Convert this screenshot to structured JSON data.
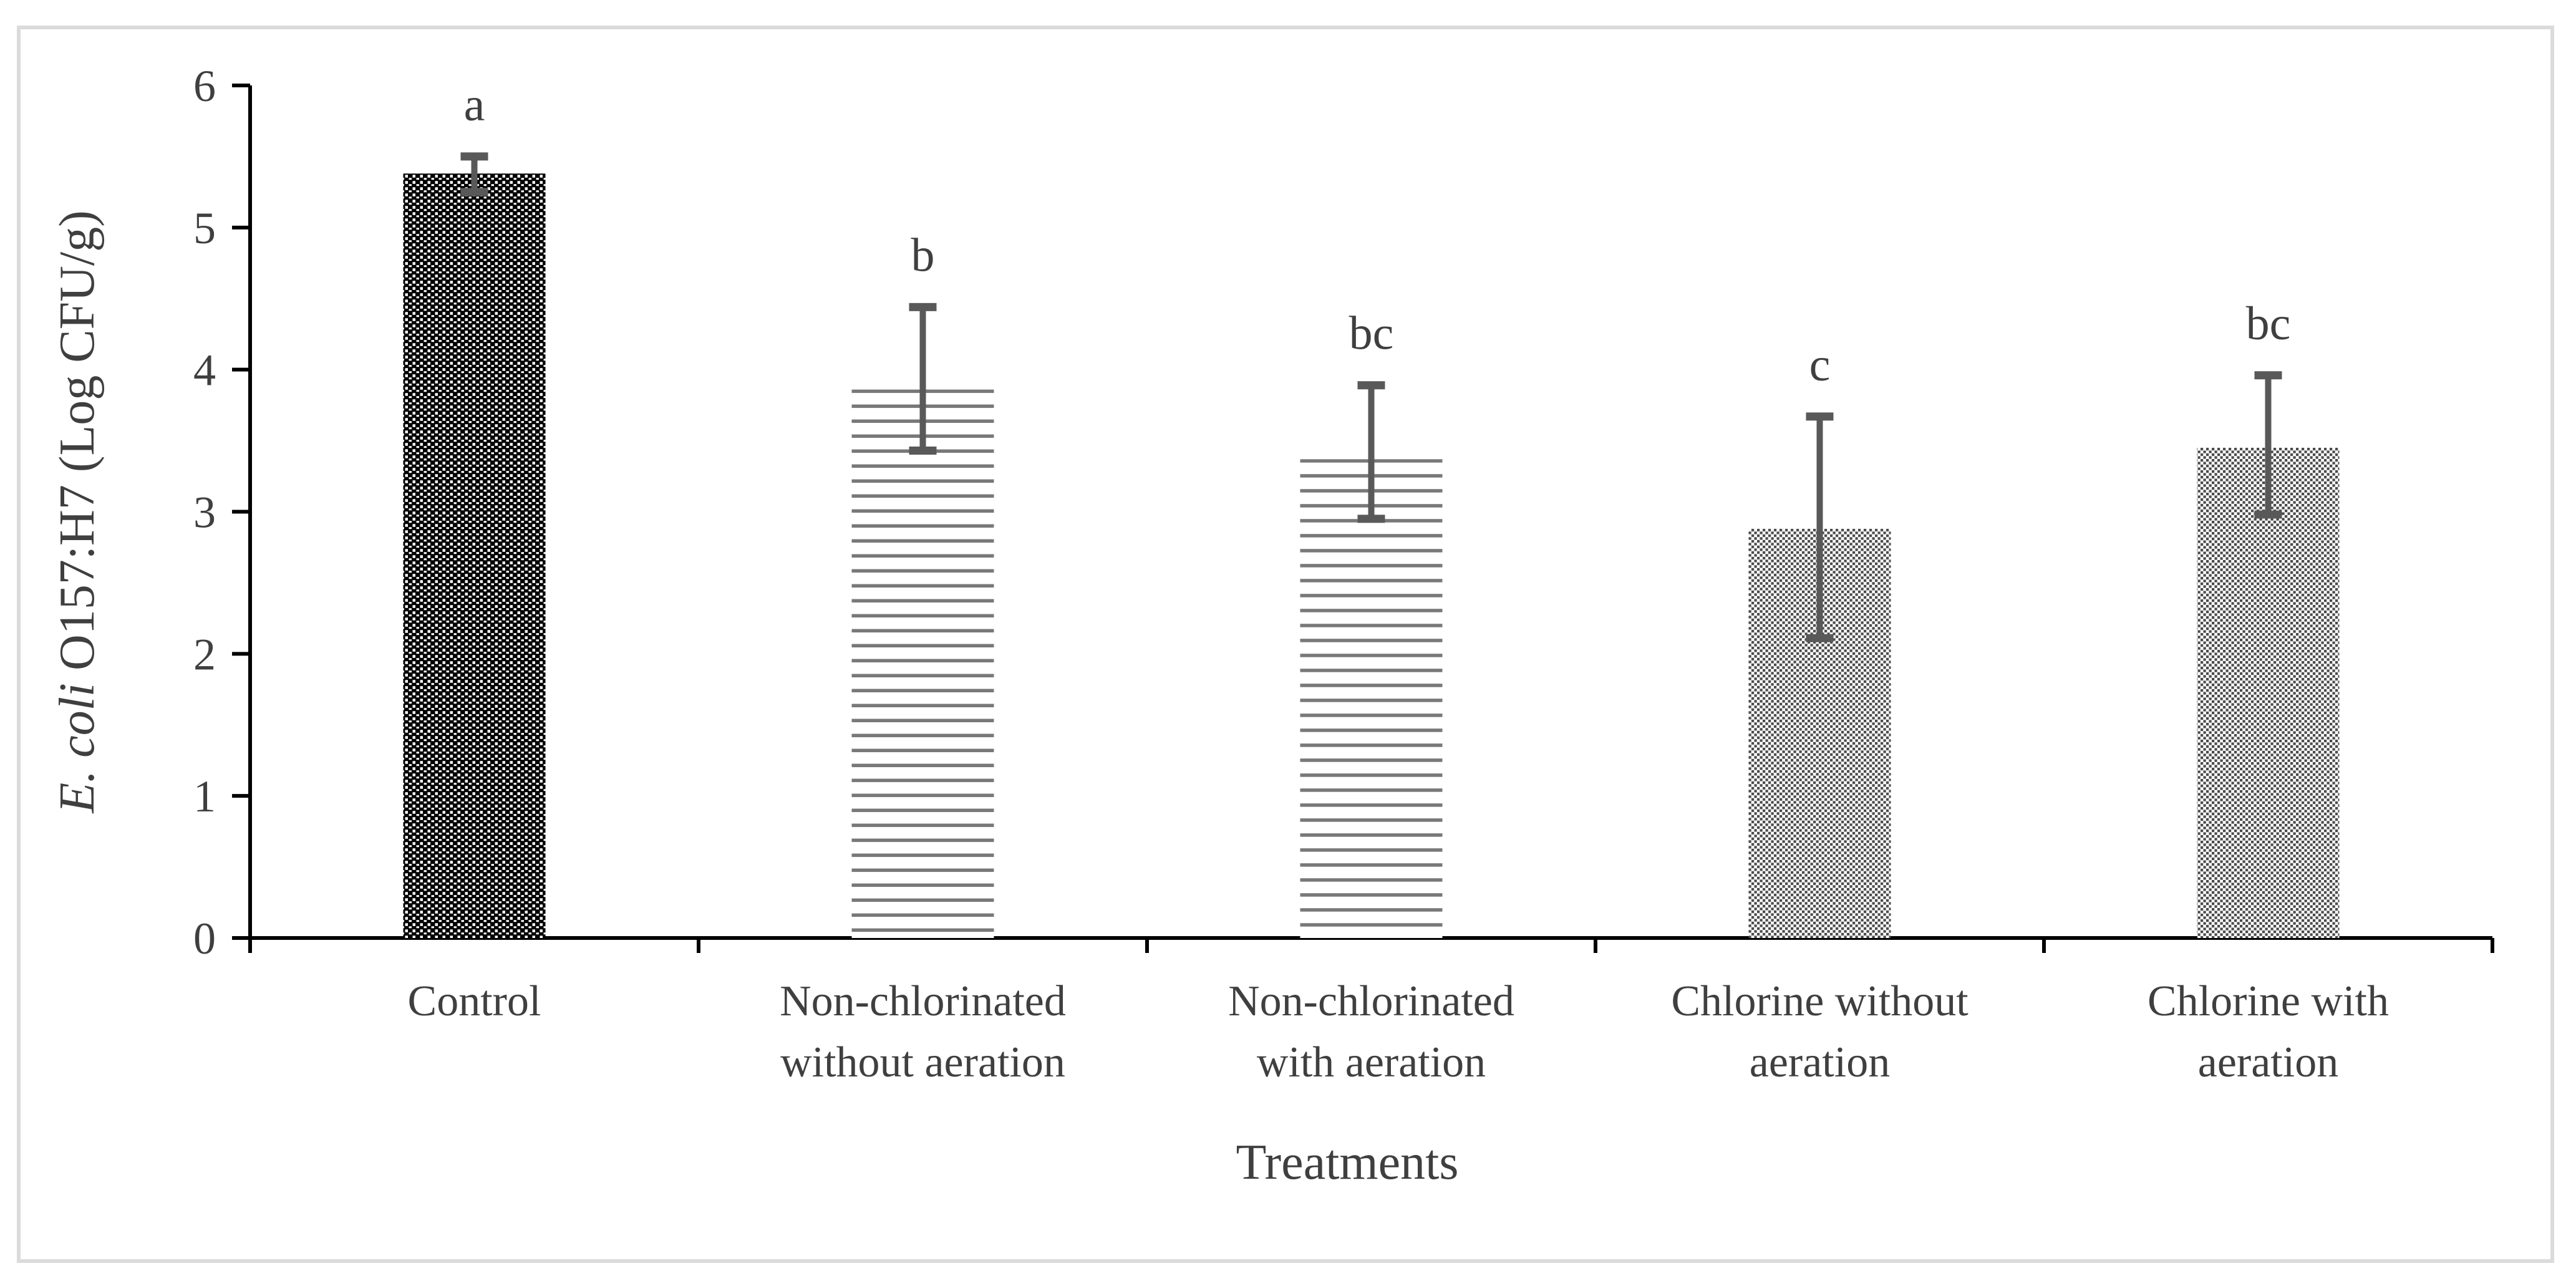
{
  "chart_data": {
    "type": "bar",
    "title": "",
    "xlabel": "Treatments",
    "ylabel_parts": [
      {
        "text": "E. coli",
        "italic": true
      },
      {
        "text": " O157:H7 (Log CFU/g)",
        "italic": false
      }
    ],
    "ylim": [
      0,
      6
    ],
    "yticks": [
      0,
      1,
      2,
      3,
      4,
      5,
      6
    ],
    "grid": false,
    "legend": "none",
    "categories": [
      "Control",
      "Non-chlorinated without aeration",
      "Non-chlorinated with aeration",
      "Chlorine without aeration",
      "Chlorine with aeration"
    ],
    "category_label_lines": [
      [
        "Control"
      ],
      [
        "Non-chlorinated",
        "without aeration"
      ],
      [
        "Non-chlorinated",
        "with aeration"
      ],
      [
        "Chlorine without",
        "aeration"
      ],
      [
        "Chlorine with",
        "aeration"
      ]
    ],
    "values": [
      5.38,
      3.86,
      3.37,
      2.88,
      3.45
    ],
    "error_top": [
      5.5,
      4.44,
      3.89,
      3.67,
      3.96
    ],
    "error_bottom": [
      5.25,
      3.43,
      2.95,
      2.11,
      2.98
    ],
    "sig_letters": [
      "a",
      "b",
      "bc",
      "c",
      "bc"
    ],
    "bar_patterns": [
      "dense-dots-black",
      "horizontal-lines",
      "horizontal-lines",
      "diamond-crosshatch",
      "diamond-crosshatch"
    ],
    "colors": {
      "axis": "#000000",
      "text": "#3f3f3f",
      "error_bar": "#595959",
      "line_pattern_gray": "#787878",
      "hatch_pattern_gray": "#4a4a4a",
      "dot_pattern_base": "#000000",
      "dot_pattern_dot": "#ffffff",
      "frame_border": "#dbdbdb",
      "background": "#ffffff"
    }
  }
}
